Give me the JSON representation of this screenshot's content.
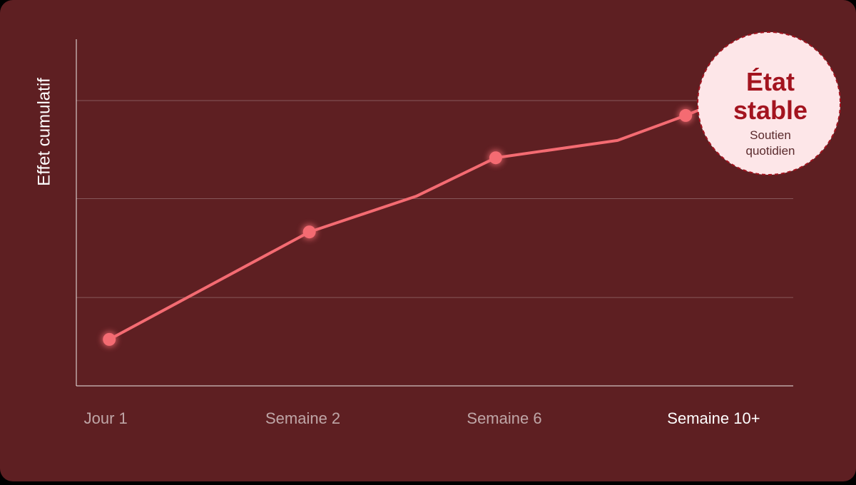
{
  "chart_data": {
    "type": "line",
    "y_label": "Effet cumulatif",
    "x": [
      4.6,
      32.5,
      47.4,
      58.5,
      75.5,
      85,
      87.9
    ],
    "xlim": [
      0,
      100
    ],
    "xticks": [
      {
        "value": 4.1,
        "label": "Jour 1"
      },
      {
        "value": 31.6,
        "label": "Semaine 2"
      },
      {
        "value": 59.7,
        "label": "Semaine 6"
      },
      {
        "value": 88.9,
        "label": "Semaine 10+"
      }
    ],
    "series": [
      {
        "color": "#f46b72",
        "values": [
          13.4,
          44.4,
          54.7,
          65.8,
          70.8,
          78,
          80.5
        ],
        "markers": [
          true,
          true,
          false,
          true,
          false,
          true,
          false
        ]
      }
    ],
    "ylim": [
      0,
      100
    ],
    "grid_lines": [
      25.5,
      54,
      82.3
    ],
    "badge": {
      "title": "État stable",
      "subtitle": "Soutien quotidien"
    }
  }
}
